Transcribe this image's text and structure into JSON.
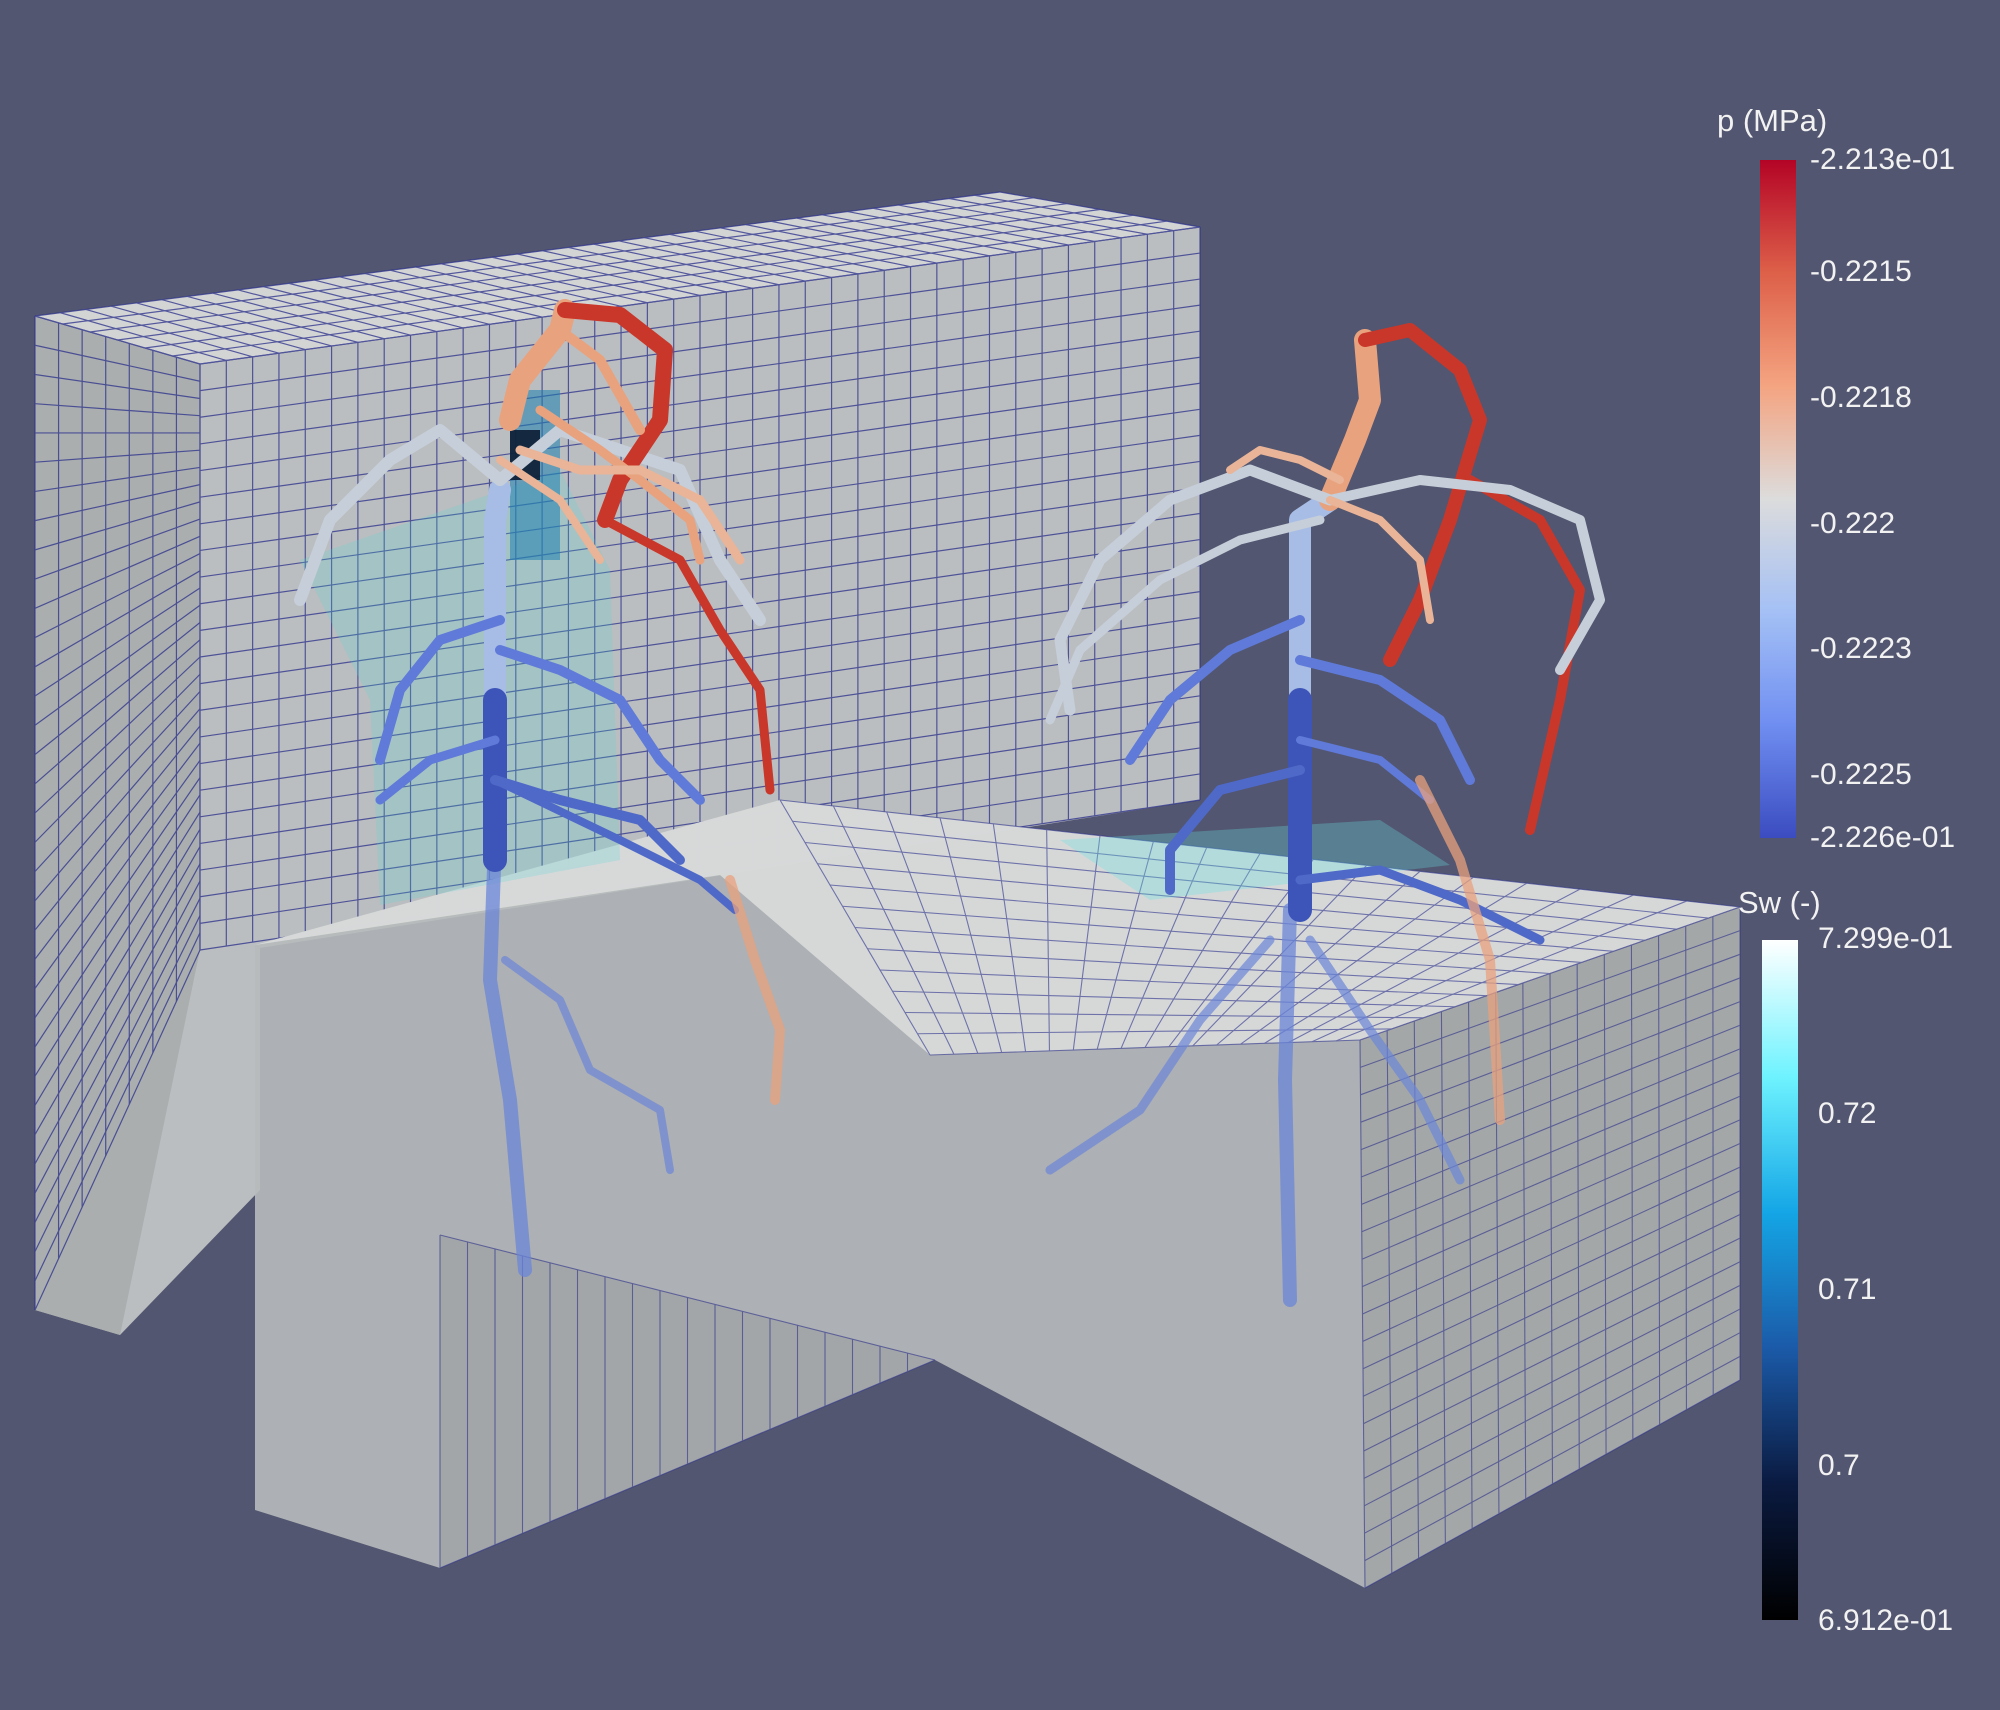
{
  "pressure_legend": {
    "title": "p (MPa)",
    "ticks": [
      "-2.213e-01",
      "-0.2215",
      "-0.2218",
      "-0.222",
      "-0.2223",
      "-0.2225",
      "-2.226e-01"
    ],
    "colors": [
      "#b40426",
      "#dd6049",
      "#f4a481",
      "#dcdcdc",
      "#a4c0f5",
      "#6f8ef1",
      "#3b4cc0"
    ]
  },
  "saturation_legend": {
    "title": "Sw (-)",
    "ticks": [
      "7.299e-01",
      "0.72",
      "0.71",
      "0.7",
      "6.912e-01"
    ],
    "colors": [
      "#ffffff",
      "#6ff3ff",
      "#14a6e6",
      "#1b5aa8",
      "#0a1a40",
      "#000000"
    ]
  },
  "colors": {
    "background": "#525670",
    "grid_line": "#2a2f8a",
    "soil_face_light": "#c8cbcb",
    "soil_face_dark": "#9ea1a2"
  }
}
